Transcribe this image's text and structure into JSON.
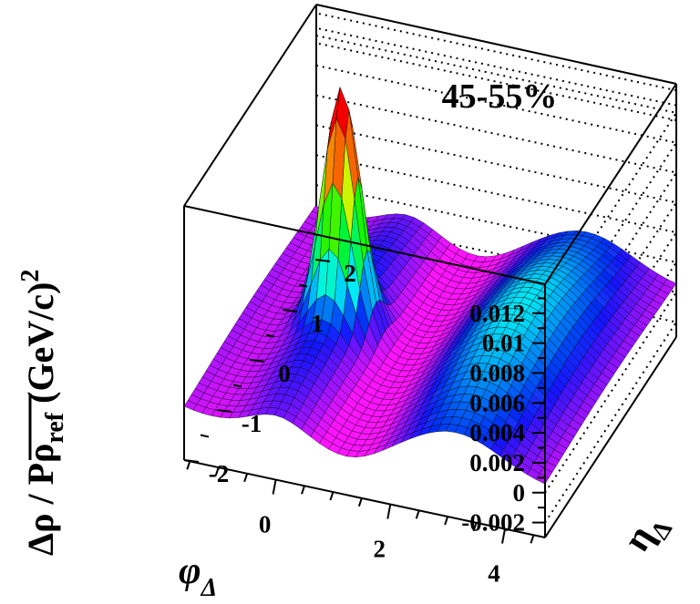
{
  "chart_data": {
    "type": "surface3d",
    "title": "45-55%",
    "zlabel": {
      "prefix": "Δρ / Pρ",
      "subscript": "ref",
      "suffix": " (GeV/c)",
      "superscript": "2"
    },
    "xlabel": {
      "main": "φ",
      "subscript": "Δ"
    },
    "ylabel": {
      "main": "η",
      "subscript": "Δ"
    },
    "zticks": [
      "-0.002",
      "0",
      "0.002",
      "0.004",
      "0.006",
      "0.008",
      "0.01",
      "0.012"
    ],
    "xticks": [
      "0",
      "2",
      "4"
    ],
    "yticks": [
      "-2",
      "-1",
      "0",
      "1",
      "2"
    ],
    "xlim": [
      -1.6,
      4.7
    ],
    "ylim": [
      -2.0,
      2.0
    ],
    "zlim": [
      -0.003,
      0.014
    ],
    "surface": {
      "baseline": 0.0002,
      "near_side_peak": {
        "phi": 0.0,
        "eta": 0.0,
        "amplitude": 0.0142,
        "sigma_phi": 0.3,
        "sigma_eta": 0.22
      },
      "near_side_ridge": {
        "phi": 0.0,
        "amplitude": 0.0022,
        "sigma_phi": 0.45
      },
      "away_side": {
        "phi": 3.14,
        "amplitude": 0.0045,
        "sigma_phi": 0.8
      },
      "dip_region": {
        "phi": 1.3,
        "amplitude": -0.0008,
        "sigma_phi": 0.5
      }
    }
  }
}
